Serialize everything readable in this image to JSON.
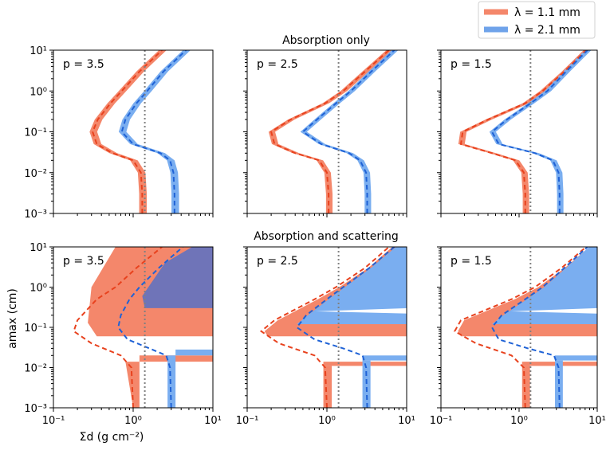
{
  "figure": {
    "legend": [
      {
        "label": "λ = 1.1 mm",
        "color": "#f4876b"
      },
      {
        "label": "λ = 2.1 mm",
        "color": "#6fa3ea"
      }
    ],
    "row_titles": [
      "Absorption only",
      "Absorption and scattering"
    ],
    "xlabel": "Σd (g cm⁻²)",
    "ylabel": "amax (cm)",
    "colors": {
      "red_band": "#f4876b",
      "blue_band": "#7aaef0",
      "red_dash": "#e8421e",
      "blue_dash": "#1f62d6",
      "overlap": "#6f74b8",
      "vline": "#808080"
    }
  },
  "chart_data": [
    {
      "type": "line",
      "panel": "absorption-only p=3.5",
      "title": "",
      "annotation": "p = 3.5",
      "xscale": "log",
      "yscale": "log",
      "xlim": [
        0.1,
        10
      ],
      "ylim": [
        0.001,
        10
      ],
      "x_ticks": [
        "10⁻¹",
        "10⁰",
        "10¹"
      ],
      "y_ticks": [
        "10⁻³",
        "10⁻²",
        "10⁻¹",
        "10⁰",
        "10¹"
      ],
      "vline_x": 1.4,
      "series": [
        {
          "name": "λ = 1.1 mm",
          "y": [
            0.001,
            0.003,
            0.01,
            0.02,
            0.03,
            0.05,
            0.1,
            0.2,
            0.5,
            1,
            3,
            10
          ],
          "x": [
            1.3,
            1.3,
            1.25,
            1.0,
            0.55,
            0.35,
            0.31,
            0.36,
            0.52,
            0.72,
            1.2,
            2.3
          ],
          "band_frac": 0.14
        },
        {
          "name": "λ = 2.1 mm",
          "y": [
            0.001,
            0.003,
            0.01,
            0.02,
            0.03,
            0.05,
            0.1,
            0.2,
            0.5,
            1,
            3,
            10
          ],
          "x": [
            3.3,
            3.3,
            3.2,
            2.9,
            2.2,
            1.0,
            0.72,
            0.8,
            1.1,
            1.5,
            2.4,
            4.6
          ],
          "band_frac": 0.14
        }
      ]
    },
    {
      "type": "line",
      "panel": "absorption-only p=2.5",
      "title": "",
      "annotation": "p = 2.5",
      "xscale": "log",
      "yscale": "log",
      "xlim": [
        0.1,
        10
      ],
      "ylim": [
        0.001,
        10
      ],
      "x_ticks": [
        "10⁻¹",
        "10⁰",
        "10¹"
      ],
      "y_ticks": [
        "10⁻³",
        "10⁻²",
        "10⁻¹",
        "10⁰",
        "10¹"
      ],
      "vline_x": 1.4,
      "series": [
        {
          "name": "λ = 1.1 mm",
          "y": [
            0.001,
            0.003,
            0.01,
            0.02,
            0.03,
            0.05,
            0.1,
            0.2,
            0.5,
            1,
            3,
            10
          ],
          "x": [
            1.05,
            1.05,
            1.0,
            0.8,
            0.4,
            0.22,
            0.2,
            0.35,
            0.95,
            1.6,
            3.0,
            6.0
          ],
          "band_frac": 0.12
        },
        {
          "name": "λ = 2.1 mm",
          "y": [
            0.001,
            0.003,
            0.01,
            0.02,
            0.03,
            0.05,
            0.1,
            0.2,
            0.5,
            1,
            3,
            10
          ],
          "x": [
            3.2,
            3.2,
            3.1,
            2.6,
            1.9,
            0.85,
            0.5,
            0.75,
            1.3,
            2.0,
            3.6,
            7.0
          ],
          "band_frac": 0.12
        }
      ]
    },
    {
      "type": "line",
      "panel": "absorption-only p=1.5",
      "title": "",
      "annotation": "p = 1.5",
      "xscale": "log",
      "yscale": "log",
      "xlim": [
        0.1,
        10
      ],
      "ylim": [
        0.001,
        10
      ],
      "x_ticks": [
        "10⁻¹",
        "10⁰",
        "10¹"
      ],
      "y_ticks": [
        "10⁻³",
        "10⁻²",
        "10⁻¹",
        "10⁰",
        "10¹"
      ],
      "vline_x": 1.4,
      "series": [
        {
          "name": "λ = 1.1 mm",
          "y": [
            0.001,
            0.003,
            0.01,
            0.02,
            0.03,
            0.05,
            0.1,
            0.2,
            0.5,
            1,
            3,
            10
          ],
          "x": [
            1.2,
            1.2,
            1.15,
            0.9,
            0.45,
            0.18,
            0.19,
            0.4,
            1.2,
            2.0,
            3.8,
            7.2
          ],
          "band_frac": 0.12
        },
        {
          "name": "λ = 2.1 mm",
          "y": [
            0.001,
            0.003,
            0.01,
            0.02,
            0.03,
            0.05,
            0.1,
            0.2,
            0.5,
            1,
            3,
            10
          ],
          "x": [
            3.3,
            3.3,
            3.2,
            2.7,
            1.6,
            0.55,
            0.45,
            0.7,
            1.4,
            2.3,
            4.0,
            7.5
          ],
          "band_frac": 0.12
        }
      ]
    },
    {
      "type": "area",
      "panel": "absorption+scattering p=3.5",
      "title": "",
      "annotation": "p = 3.5",
      "xscale": "log",
      "yscale": "log",
      "xlim": [
        0.1,
        10
      ],
      "ylim": [
        0.001,
        10
      ],
      "x_ticks": [
        "10⁻¹",
        "10⁰",
        "10¹"
      ],
      "y_ticks": [
        "10⁻³",
        "10⁻²",
        "10⁻¹",
        "10⁰",
        "10¹"
      ],
      "vline_x": 1.4,
      "regions": [
        {
          "name": "λ = 1.1 mm",
          "polygon_x": [
            0.35,
            1.0,
            3.0,
            10,
            10,
            10,
            0.6,
            0.3,
            0.27,
            0.35
          ],
          "polygon_y": [
            0.06,
            0.06,
            0.06,
            0.06,
            10,
            10,
            10,
            1.0,
            0.13,
            0.06
          ]
        },
        {
          "name": "λ = 2.1 mm",
          "polygon_x": [
            1.4,
            10,
            10,
            5.5,
            2.5,
            1.3,
            1.4
          ],
          "polygon_y": [
            0.3,
            0.3,
            10,
            10,
            4.0,
            0.6,
            0.3
          ]
        },
        {
          "name": "λ = 1.1 mm low",
          "polygon_x": [
            0.8,
            10,
            10,
            1.2,
            1.2,
            1.0,
            0.8
          ],
          "polygon_y": [
            0.014,
            0.014,
            0.02,
            0.02,
            0.001,
            0.001,
            0.014
          ]
        },
        {
          "name": "λ = 2.1 mm low",
          "polygon_x": [
            2.7,
            10,
            10,
            3.4,
            3.4,
            2.7,
            2.7
          ],
          "polygon_y": [
            0.02,
            0.02,
            0.028,
            0.028,
            0.001,
            0.001,
            0.02
          ]
        }
      ],
      "dashed": [
        {
          "name": "λ = 1.1 mm",
          "y": [
            0.001,
            0.01,
            0.02,
            0.04,
            0.08,
            0.15,
            0.5,
            1,
            3,
            10
          ],
          "x": [
            1.0,
            0.95,
            0.7,
            0.3,
            0.18,
            0.2,
            0.35,
            0.6,
            1.1,
            2.3
          ]
        },
        {
          "name": "λ = 2.1 mm",
          "y": [
            0.001,
            0.01,
            0.02,
            0.03,
            0.05,
            0.1,
            0.2,
            0.5,
            1,
            3,
            10
          ],
          "x": [
            3.0,
            2.9,
            2.6,
            1.6,
            0.85,
            0.65,
            0.7,
            0.9,
            1.2,
            2.1,
            4.2
          ]
        }
      ]
    },
    {
      "type": "area",
      "panel": "absorption+scattering p=2.5",
      "title": "",
      "annotation": "p = 2.5",
      "xscale": "log",
      "yscale": "log",
      "xlim": [
        0.1,
        10
      ],
      "ylim": [
        0.001,
        10
      ],
      "x_ticks": [
        "10⁻¹",
        "10⁰",
        "10¹"
      ],
      "y_ticks": [
        "10⁻³",
        "10⁻²",
        "10⁻¹",
        "10⁰",
        "10¹"
      ],
      "vline_x": 1.4,
      "dashed": [
        {
          "name": "λ = 1.1 mm",
          "y": [
            0.001,
            0.01,
            0.02,
            0.04,
            0.08,
            0.15,
            0.5,
            1,
            3,
            10
          ],
          "x": [
            1.0,
            0.95,
            0.7,
            0.25,
            0.15,
            0.22,
            0.7,
            1.3,
            3.0,
            6.0
          ]
        },
        {
          "name": "λ = 2.1 mm",
          "y": [
            0.001,
            0.01,
            0.02,
            0.03,
            0.05,
            0.1,
            0.2,
            0.5,
            1,
            3,
            10
          ],
          "x": [
            3.2,
            3.1,
            2.8,
            1.6,
            0.7,
            0.42,
            0.55,
            1.0,
            1.6,
            3.4,
            7.0
          ]
        }
      ]
    },
    {
      "type": "area",
      "panel": "absorption+scattering p=1.5",
      "title": "",
      "annotation": "p = 1.5",
      "xscale": "log",
      "yscale": "log",
      "xlim": [
        0.1,
        10
      ],
      "ylim": [
        0.001,
        10
      ],
      "x_ticks": [
        "10⁻¹",
        "10⁰",
        "10¹"
      ],
      "y_ticks": [
        "10⁻³",
        "10⁻²",
        "10⁻¹",
        "10⁰",
        "10¹"
      ],
      "vline_x": 1.4,
      "dashed": [
        {
          "name": "λ = 1.1 mm",
          "y": [
            0.001,
            0.01,
            0.02,
            0.04,
            0.08,
            0.15,
            0.5,
            1,
            3,
            10
          ],
          "x": [
            1.2,
            1.15,
            0.8,
            0.28,
            0.15,
            0.18,
            0.8,
            1.6,
            3.5,
            7.2
          ]
        },
        {
          "name": "λ = 2.1 mm",
          "y": [
            0.001,
            0.01,
            0.02,
            0.03,
            0.05,
            0.1,
            0.2,
            0.5,
            1,
            3,
            10
          ],
          "x": [
            3.3,
            3.2,
            2.8,
            1.3,
            0.55,
            0.45,
            0.6,
            1.2,
            2.0,
            3.8,
            7.5
          ]
        }
      ]
    }
  ]
}
